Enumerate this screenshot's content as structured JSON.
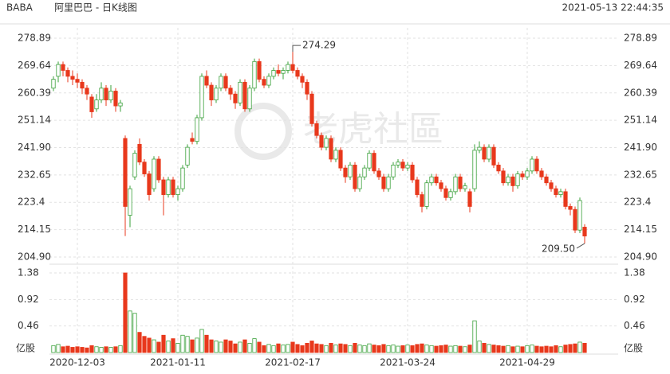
{
  "header": {
    "symbol": "BABA",
    "name": "阿里巴巴 - 日K线图",
    "timestamp": "2021-05-13 22:44:35"
  },
  "watermark": "老虎社區",
  "chart_data": {
    "type": "candlestick",
    "ylim": [
      204.9,
      278.89
    ],
    "yticks": [
      {
        "value": 204.9,
        "label": "204.90"
      },
      214.15,
      223.4,
      232.65,
      {
        "value": 241.9,
        "label": "241.90"
      },
      251.14,
      260.39,
      269.64,
      278.89
    ],
    "grid": true,
    "up_color": "#3aa03a",
    "down_color": "#e8381c",
    "high_label": "274.29",
    "low_label": "209.50",
    "xticks": [
      {
        "value": 5,
        "label": "2020-12-03"
      },
      {
        "value": 26,
        "label": "2021-01-11"
      },
      {
        "value": 50,
        "label": "2021-02-17"
      },
      {
        "value": 74,
        "label": "2021-03-24"
      },
      {
        "value": 99,
        "label": "2021-04-29"
      }
    ],
    "ohlc": [
      [
        262,
        266,
        261,
        265
      ],
      [
        266,
        271,
        264,
        270
      ],
      [
        270,
        271,
        266,
        268
      ],
      [
        268,
        269,
        264,
        266
      ],
      [
        266,
        268,
        263,
        265
      ],
      [
        265,
        267,
        262,
        264
      ],
      [
        264,
        265,
        260,
        262
      ],
      [
        262,
        263,
        258,
        260
      ],
      [
        259,
        260,
        252,
        254
      ],
      [
        255,
        260,
        254,
        258
      ],
      [
        258,
        264,
        257,
        262
      ],
      [
        262,
        263,
        256,
        258
      ],
      [
        258,
        263,
        257,
        261
      ],
      [
        261,
        262,
        254,
        256
      ],
      [
        256,
        258,
        254,
        257
      ],
      [
        245,
        246,
        212,
        222
      ],
      [
        219,
        229,
        215,
        228
      ],
      [
        232,
        241,
        231,
        240
      ],
      [
        243,
        245,
        236,
        237
      ],
      [
        237,
        238,
        232,
        233
      ],
      [
        233,
        234,
        224,
        226
      ],
      [
        228,
        239,
        227,
        238
      ],
      [
        238,
        239,
        230,
        231
      ],
      [
        231,
        232,
        219,
        226
      ],
      [
        226,
        232,
        225,
        231
      ],
      [
        231,
        232,
        225,
        226
      ],
      [
        226,
        229,
        224,
        228
      ],
      [
        228,
        236,
        227,
        235
      ],
      [
        236,
        243,
        235,
        242
      ],
      [
        245,
        247,
        243,
        244
      ],
      [
        244,
        253,
        243,
        252
      ],
      [
        252,
        267,
        251,
        266
      ],
      [
        266,
        268,
        262,
        263
      ],
      [
        263,
        264,
        256,
        258
      ],
      [
        258,
        263,
        257,
        262
      ],
      [
        262,
        267,
        261,
        266
      ],
      [
        266,
        267,
        261,
        262
      ],
      [
        262,
        263,
        258,
        260
      ],
      [
        260,
        261,
        255,
        257
      ],
      [
        257,
        265,
        256,
        264
      ],
      [
        264,
        265,
        254,
        255
      ],
      [
        255,
        263,
        254,
        262
      ],
      [
        262,
        272,
        261,
        271
      ],
      [
        271,
        272,
        264,
        265
      ],
      [
        265,
        266,
        262,
        263
      ],
      [
        263,
        267,
        262,
        266
      ],
      [
        266,
        269,
        265,
        268
      ],
      [
        268,
        270,
        266,
        267
      ],
      [
        267,
        269,
        265,
        268
      ],
      [
        268,
        271,
        267,
        270
      ],
      [
        270,
        274.29,
        267,
        268
      ],
      [
        268,
        269,
        265,
        266
      ],
      [
        266,
        267,
        262,
        264
      ],
      [
        264,
        265,
        258,
        260
      ],
      [
        260,
        261,
        249,
        250
      ],
      [
        250,
        251,
        245,
        246
      ],
      [
        246,
        247,
        241,
        242
      ],
      [
        242,
        246,
        241,
        245
      ],
      [
        245,
        246,
        237,
        238
      ],
      [
        238,
        242,
        237,
        241
      ],
      [
        241,
        242,
        234,
        235
      ],
      [
        235,
        236,
        230,
        232
      ],
      [
        232,
        237,
        231,
        236
      ],
      [
        236,
        237,
        227,
        228
      ],
      [
        228,
        233,
        227,
        232
      ],
      [
        232,
        236,
        231,
        235
      ],
      [
        235,
        241,
        234,
        240
      ],
      [
        240,
        241,
        233,
        234
      ],
      [
        234,
        235,
        231,
        232
      ],
      [
        232,
        233,
        227,
        228
      ],
      [
        228,
        233,
        227,
        232
      ],
      [
        232,
        237,
        231,
        236
      ],
      [
        236,
        238,
        235,
        237
      ],
      [
        237,
        238,
        234,
        235
      ],
      [
        235,
        237,
        234,
        236
      ],
      [
        236,
        237,
        230,
        231
      ],
      [
        231,
        232,
        225,
        226
      ],
      [
        226,
        227,
        220,
        222
      ],
      [
        222,
        231,
        221,
        230
      ],
      [
        230,
        233,
        229,
        232
      ],
      [
        232,
        233,
        229,
        230
      ],
      [
        230,
        231,
        227,
        228
      ],
      [
        228,
        229,
        224,
        225
      ],
      [
        225,
        228,
        224,
        227
      ],
      [
        227,
        233,
        226,
        232
      ],
      [
        232,
        233,
        227,
        228
      ],
      [
        228,
        230,
        227,
        229
      ],
      [
        227,
        228,
        220,
        222
      ],
      [
        228,
        243,
        227,
        241
      ],
      [
        241,
        244,
        240,
        242
      ],
      [
        242,
        243,
        237,
        238
      ],
      [
        238,
        243,
        237,
        242
      ],
      [
        242,
        243,
        235,
        236
      ],
      [
        236,
        237,
        233,
        234
      ],
      [
        234,
        235,
        229,
        230
      ],
      [
        230,
        233,
        229,
        232
      ],
      [
        232,
        233,
        227,
        229
      ],
      [
        229,
        234,
        228,
        233
      ],
      [
        233,
        234,
        231,
        232
      ],
      [
        232,
        235,
        231,
        234
      ],
      [
        234,
        239,
        233,
        238
      ],
      [
        238,
        239,
        233,
        234
      ],
      [
        234,
        235,
        231,
        232
      ],
      [
        232,
        233,
        229,
        230
      ],
      [
        230,
        231,
        227,
        228
      ],
      [
        228,
        229,
        225,
        226
      ],
      [
        226,
        228,
        225,
        227
      ],
      [
        227,
        228,
        221,
        222
      ],
      [
        222,
        223,
        219,
        221
      ],
      [
        221,
        222,
        213,
        214
      ],
      [
        214,
        225,
        213,
        224
      ],
      [
        215,
        216,
        209.5,
        212
      ]
    ],
    "volume_unit": "亿股",
    "volume_ylim": [
      0,
      1.38
    ],
    "volume_yticks": [
      0.46,
      0.92,
      1.38
    ],
    "volume": [
      0.12,
      0.14,
      0.1,
      0.11,
      0.09,
      0.1,
      0.09,
      0.08,
      0.12,
      0.1,
      0.09,
      0.1,
      0.09,
      0.1,
      0.12,
      1.38,
      0.72,
      0.68,
      0.35,
      0.28,
      0.25,
      0.22,
      0.18,
      0.3,
      0.2,
      0.24,
      0.16,
      0.3,
      0.28,
      0.22,
      0.25,
      0.4,
      0.3,
      0.22,
      0.2,
      0.18,
      0.22,
      0.2,
      0.15,
      0.18,
      0.22,
      0.16,
      0.24,
      0.18,
      0.12,
      0.14,
      0.12,
      0.15,
      0.13,
      0.14,
      0.18,
      0.14,
      0.12,
      0.16,
      0.2,
      0.15,
      0.14,
      0.12,
      0.16,
      0.13,
      0.15,
      0.14,
      0.12,
      0.16,
      0.13,
      0.12,
      0.15,
      0.13,
      0.12,
      0.14,
      0.12,
      0.13,
      0.11,
      0.12,
      0.13,
      0.12,
      0.14,
      0.15,
      0.13,
      0.12,
      0.11,
      0.12,
      0.13,
      0.11,
      0.12,
      0.11,
      0.1,
      0.13,
      0.55,
      0.2,
      0.16,
      0.14,
      0.13,
      0.12,
      0.11,
      0.12,
      0.1,
      0.11,
      0.1,
      0.12,
      0.13,
      0.11,
      0.1,
      0.11,
      0.1,
      0.12,
      0.1,
      0.13,
      0.14,
      0.15,
      0.18,
      0.16
    ]
  }
}
